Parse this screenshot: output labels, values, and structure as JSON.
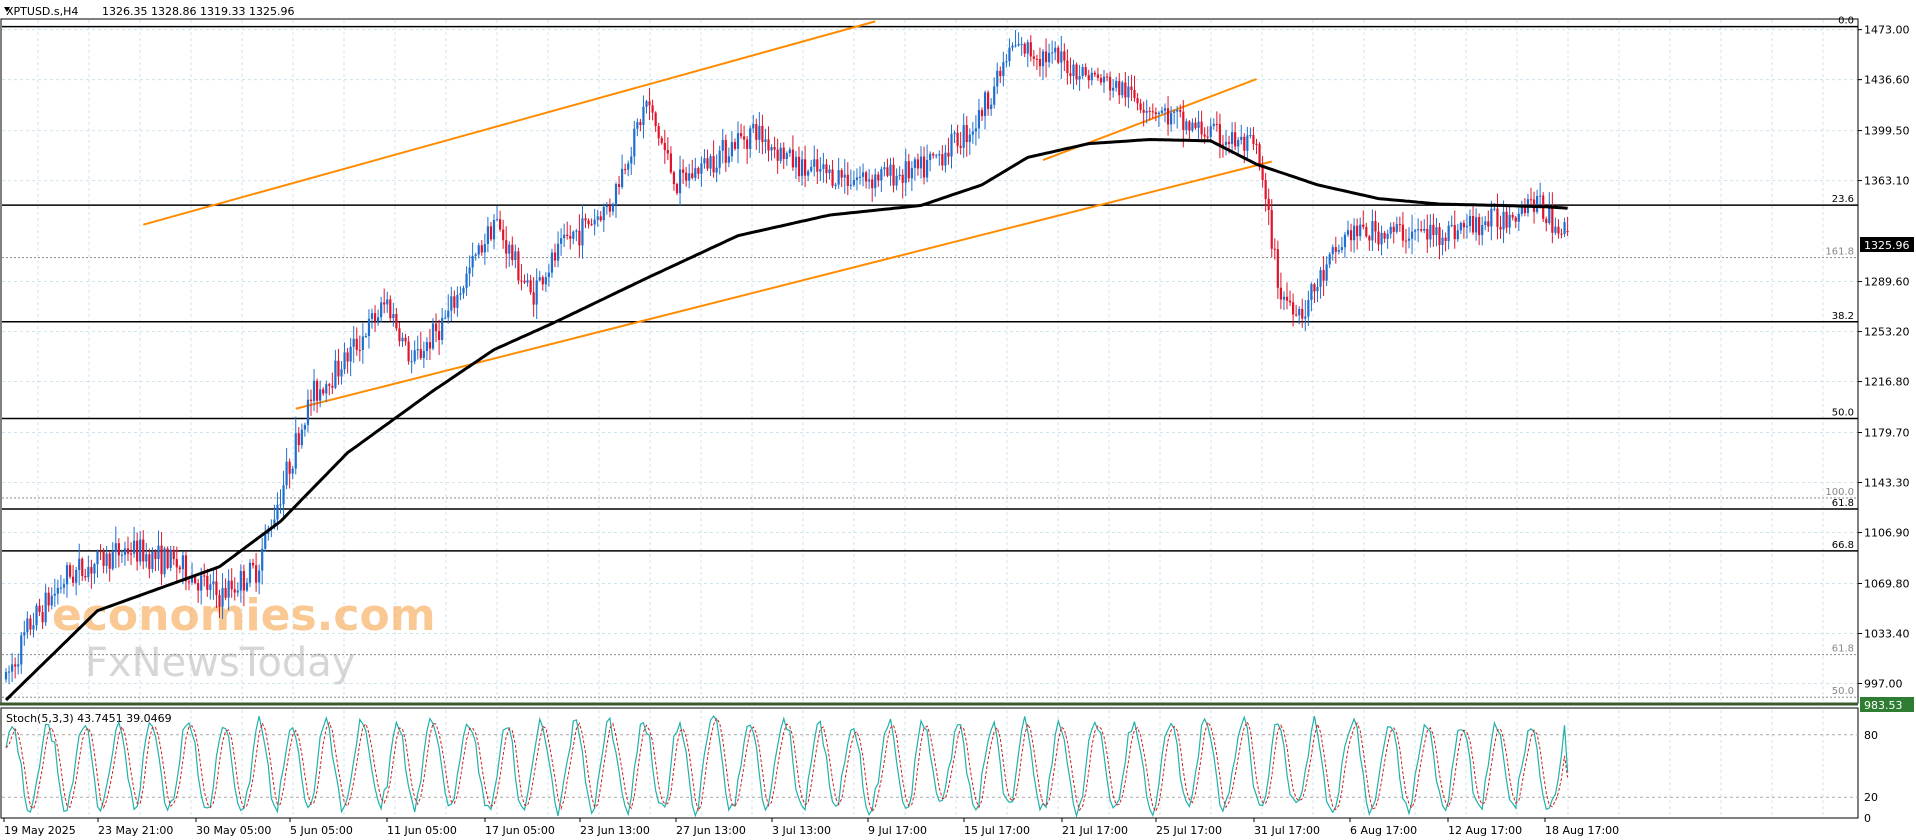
{
  "header": {
    "symbol": "XPTUSD.s,H4",
    "ohlc": "1326.35 1328.86 1319.33 1325.96"
  },
  "watermark": {
    "line1": "economies.com",
    "line2": "FxNewsToday"
  },
  "price_axis": {
    "ticks": [
      1473.0,
      1436.6,
      1399.5,
      1363.1,
      1289.6,
      1253.2,
      1216.8,
      1179.7,
      1143.3,
      1106.9,
      1069.8,
      1033.4,
      997.0
    ],
    "tick_labels": [
      "1473.00",
      "1436.60",
      "1399.50",
      "1363.10",
      "1289.60",
      "1253.20",
      "1216.80",
      "1179.70",
      "1143.30",
      "1106.90",
      "1069.80",
      "1033.40",
      "997.00"
    ],
    "current_price_label": "1325.96",
    "bottom_price_label": "983.53"
  },
  "time_axis": {
    "labels": [
      "19 May 2025",
      "23 May 21:00",
      "30 May 05:00",
      "5 Jun 05:00",
      "11 Jun 05:00",
      "17 Jun 05:00",
      "23 Jun 13:00",
      "27 Jun 13:00",
      "3 Jul 13:00",
      "9 Jul 17:00",
      "15 Jul 17:00",
      "21 Jul 17:00",
      "25 Jul 17:00",
      "31 Jul 17:00",
      "6 Aug 17:00",
      "12 Aug 17:00",
      "18 Aug 17:00"
    ]
  },
  "fib_levels": [
    {
      "label": "0.0",
      "price": 1475.2,
      "style": "solid"
    },
    {
      "label": "23.6",
      "price": 1345.2,
      "style": "solid"
    },
    {
      "label": "161.8",
      "price": 1307.0,
      "style": "dotted"
    },
    {
      "label": "38.2",
      "price": 1260.3,
      "style": "solid"
    },
    {
      "label": "50.0",
      "price": 1189.9,
      "style": "solid"
    },
    {
      "label": "100.0",
      "price": 1132.0,
      "style": "dotted"
    },
    {
      "label": "61.8",
      "price": 1124.0,
      "style": "solid"
    },
    {
      "label": "66.8",
      "price": 1093.5,
      "style": "solid"
    },
    {
      "label": "61.8",
      "price": 1018.0,
      "style": "dotted"
    },
    {
      "label": "50.0",
      "price": 987.0,
      "style": "dotted"
    }
  ],
  "stochastic": {
    "label": "Stoch(5,3,3) 43.7451 39.0469",
    "levels": [
      80,
      20,
      0
    ],
    "level_labels": [
      "80",
      "20",
      "0"
    ],
    "main_value": 43.7451,
    "signal_value": 39.0469
  },
  "colors": {
    "bull": "#1e6fd0",
    "bear": "#e0142a",
    "ma": "#000000",
    "channel": "#ff8c00",
    "grid": "#cfe4ec",
    "stoch_main": "#20b2aa",
    "stoch_signal": "#d02020",
    "bottom_label_bg": "#2e7d32"
  },
  "chart_data": {
    "type": "candlestick",
    "symbol": "XPTUSD.s",
    "timeframe": "H4",
    "last_ohlc": {
      "open": 1326.35,
      "high": 1328.86,
      "low": 1319.33,
      "close": 1325.96
    },
    "ylim": [
      983.53,
      1480
    ],
    "approx_close_path": [
      [
        0,
        1000
      ],
      [
        8,
        1040
      ],
      [
        20,
        1075
      ],
      [
        40,
        1095
      ],
      [
        55,
        1085
      ],
      [
        70,
        1060
      ],
      [
        82,
        1080
      ],
      [
        92,
        1150
      ],
      [
        100,
        1205
      ],
      [
        112,
        1235
      ],
      [
        125,
        1275
      ],
      [
        133,
        1230
      ],
      [
        145,
        1265
      ],
      [
        160,
        1335
      ],
      [
        172,
        1280
      ],
      [
        184,
        1320
      ],
      [
        198,
        1345
      ],
      [
        210,
        1420
      ],
      [
        220,
        1360
      ],
      [
        232,
        1380
      ],
      [
        245,
        1400
      ],
      [
        262,
        1370
      ],
      [
        280,
        1365
      ],
      [
        300,
        1370
      ],
      [
        318,
        1405
      ],
      [
        330,
        1460
      ],
      [
        340,
        1455
      ],
      [
        355,
        1440
      ],
      [
        365,
        1430
      ],
      [
        385,
        1405
      ],
      [
        398,
        1395
      ],
      [
        410,
        1385
      ],
      [
        418,
        1280
      ],
      [
        425,
        1268
      ],
      [
        440,
        1325
      ],
      [
        455,
        1325
      ],
      [
        470,
        1325
      ],
      [
        490,
        1335
      ],
      [
        500,
        1350
      ],
      [
        508,
        1332
      ],
      [
        512,
        1324
      ]
    ],
    "moving_average_path": [
      [
        0,
        985
      ],
      [
        30,
        1050
      ],
      [
        55,
        1070
      ],
      [
        70,
        1082
      ],
      [
        90,
        1115
      ],
      [
        112,
        1165
      ],
      [
        140,
        1210
      ],
      [
        160,
        1240
      ],
      [
        180,
        1260
      ],
      [
        210,
        1292
      ],
      [
        240,
        1323
      ],
      [
        270,
        1338
      ],
      [
        300,
        1345
      ],
      [
        320,
        1360
      ],
      [
        335,
        1380
      ],
      [
        355,
        1390
      ],
      [
        375,
        1393
      ],
      [
        395,
        1392
      ],
      [
        410,
        1375
      ],
      [
        430,
        1360
      ],
      [
        450,
        1350
      ],
      [
        470,
        1346
      ],
      [
        490,
        1345
      ],
      [
        505,
        1344
      ],
      [
        512,
        1343
      ]
    ],
    "channel_upper": [
      [
        45,
        1331
      ],
      [
        285,
        1479
      ]
    ],
    "channel_lower": [
      [
        95,
        1197
      ],
      [
        415,
        1377
      ]
    ],
    "channel_right": [
      [
        340,
        1378
      ],
      [
        410,
        1437
      ]
    ]
  }
}
